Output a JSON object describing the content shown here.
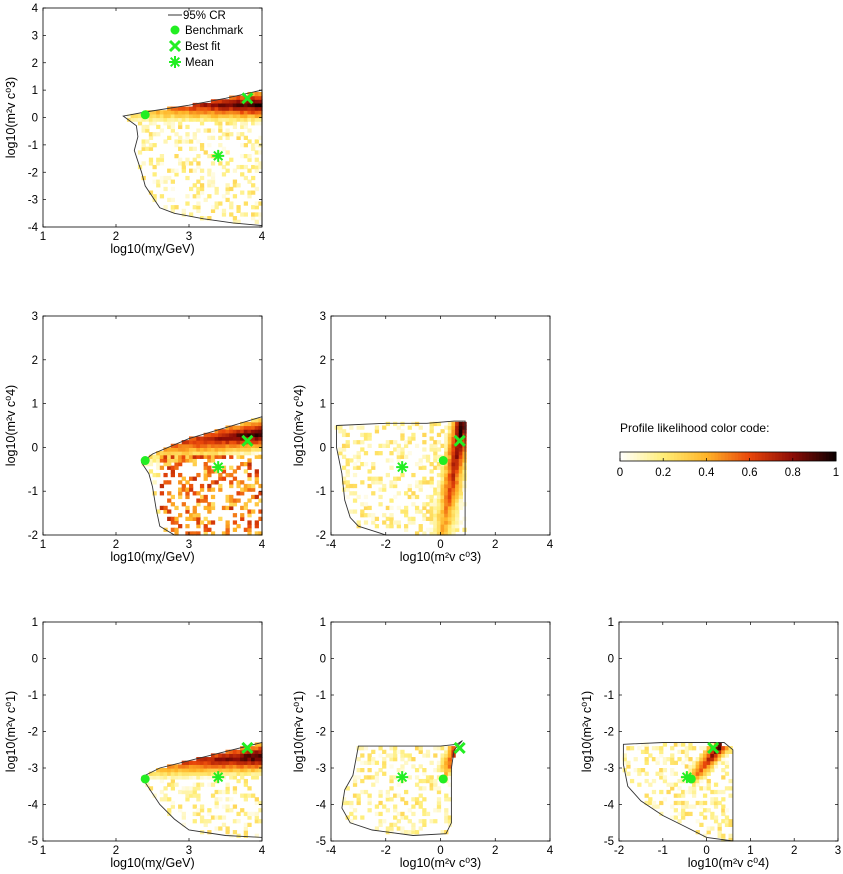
{
  "chart_data": [
    {
      "type": "heatmap",
      "panel": "m_chi-vs-c3",
      "xlabel": "log10(mχ/GeV)",
      "ylabel": "log10(m²v c⁰3)",
      "xlim": [
        1,
        4
      ],
      "ylim": [
        -4,
        4
      ],
      "xticks": [
        "1",
        "2",
        "3",
        "4"
      ],
      "yticks": [
        "-4",
        "-3",
        "-2",
        "-1",
        "0",
        "1",
        "2",
        "3",
        "4"
      ],
      "band": {
        "x": [
          2.3,
          4.0
        ],
        "y_start": [
          0.0,
          0.04
        ],
        "y_end": [
          0.82,
          0.95
        ]
      },
      "contour": [
        [
          2.1,
          0.05
        ],
        [
          2.4,
          0.2
        ],
        [
          3.0,
          0.45
        ],
        [
          3.5,
          0.7
        ],
        [
          4.0,
          1.0
        ],
        [
          4.0,
          -3.95
        ],
        [
          3.6,
          -3.85
        ],
        [
          3.2,
          -3.7
        ],
        [
          3.0,
          -3.6
        ],
        [
          2.8,
          -3.5
        ],
        [
          2.6,
          -3.3
        ],
        [
          2.5,
          -2.9
        ],
        [
          2.4,
          -2.5
        ],
        [
          2.35,
          -2.0
        ],
        [
          2.3,
          -1.6
        ],
        [
          2.25,
          -1.2
        ],
        [
          2.3,
          -0.7
        ],
        [
          2.28,
          -0.3
        ],
        [
          2.1,
          0.05
        ]
      ],
      "markers": {
        "benchmark": [
          2.4,
          0.1
        ],
        "best_fit": [
          3.8,
          0.7
        ],
        "mean": [
          3.4,
          -1.4
        ]
      },
      "legend": [
        "95% CR",
        "Benchmark",
        "Best fit",
        "Mean"
      ]
    },
    {
      "type": "heatmap",
      "panel": "m_chi-vs-c4",
      "xlabel": "log10(mχ/GeV)",
      "ylabel": "log10(m²v c⁰4)",
      "xlim": [
        1,
        4
      ],
      "ylim": [
        -2,
        3
      ],
      "xticks": [
        "1",
        "2",
        "3",
        "4"
      ],
      "yticks": [
        "-2",
        "-1",
        "0",
        "1",
        "2",
        "3"
      ],
      "band": {
        "x": [
          2.4,
          4.0
        ],
        "y_start": [
          -0.35,
          0.0
        ],
        "y_end": [
          0.4,
          0.65
        ]
      },
      "contour": [
        [
          2.35,
          -0.35
        ],
        [
          2.5,
          -0.15
        ],
        [
          3.0,
          0.2
        ],
        [
          3.5,
          0.45
        ],
        [
          4.0,
          0.7
        ],
        [
          4.0,
          -2.0
        ],
        [
          2.8,
          -2.0
        ],
        [
          2.6,
          -1.8
        ],
        [
          2.55,
          -1.4
        ],
        [
          2.5,
          -0.9
        ],
        [
          2.45,
          -0.6
        ],
        [
          2.35,
          -0.35
        ]
      ],
      "markers": {
        "benchmark": [
          2.4,
          -0.3
        ],
        "best_fit": [
          3.8,
          0.15
        ],
        "mean": [
          3.4,
          -0.45
        ]
      }
    },
    {
      "type": "heatmap",
      "panel": "c3-vs-c4",
      "xlabel": "log10(m²v c⁰3)",
      "ylabel": "log10(m²v c⁰4)",
      "xlim": [
        -4,
        4
      ],
      "ylim": [
        -2,
        3
      ],
      "xticks": [
        "-4",
        "-2",
        "0",
        "2",
        "4"
      ],
      "yticks": [
        "-2",
        "-1",
        "0",
        "1",
        "2",
        "3"
      ],
      "band": {
        "x": [
          0.1,
          0.8
        ],
        "y_start": [
          -1.9,
          0.55
        ],
        "y_end": [
          -1.9,
          0.55
        ]
      },
      "contour": [
        [
          -3.8,
          0.5
        ],
        [
          -2.0,
          0.55
        ],
        [
          -0.5,
          0.55
        ],
        [
          0.5,
          0.6
        ],
        [
          0.9,
          0.6
        ],
        [
          0.9,
          -2.0
        ],
        [
          -2.0,
          -2.0
        ],
        [
          -2.5,
          -1.9
        ],
        [
          -3.0,
          -1.8
        ],
        [
          -3.3,
          -1.6
        ],
        [
          -3.5,
          -1.2
        ],
        [
          -3.6,
          -0.6
        ],
        [
          -3.8,
          0.0
        ],
        [
          -3.8,
          0.5
        ]
      ],
      "markers": {
        "benchmark": [
          0.1,
          -0.3
        ],
        "best_fit": [
          0.7,
          0.15
        ],
        "mean": [
          -1.4,
          -0.45
        ]
      }
    },
    {
      "type": "heatmap",
      "panel": "m_chi-vs-c1",
      "xlabel": "log10(mχ/GeV)",
      "ylabel": "log10(m²v c⁰1)",
      "xlim": [
        1,
        4
      ],
      "ylim": [
        -5,
        1
      ],
      "xticks": [
        "1",
        "2",
        "3",
        "4"
      ],
      "yticks": [
        "-5",
        "-4",
        "-3",
        "-2",
        "-1",
        "0",
        "1"
      ],
      "band": {
        "x": [
          2.4,
          4.0
        ],
        "y_start": [
          -3.2,
          -3.05
        ],
        "y_end": [
          -2.6,
          -2.3
        ]
      },
      "contour": [
        [
          2.35,
          -3.25
        ],
        [
          2.6,
          -3.0
        ],
        [
          3.0,
          -2.8
        ],
        [
          3.5,
          -2.55
        ],
        [
          4.0,
          -2.3
        ],
        [
          4.0,
          -4.9
        ],
        [
          3.5,
          -4.85
        ],
        [
          3.0,
          -4.7
        ],
        [
          2.8,
          -4.4
        ],
        [
          2.6,
          -4.0
        ],
        [
          2.5,
          -3.7
        ],
        [
          2.35,
          -3.25
        ]
      ],
      "markers": {
        "benchmark": [
          2.4,
          -3.3
        ],
        "best_fit": [
          3.8,
          -2.45
        ],
        "mean": [
          3.4,
          -3.25
        ]
      }
    },
    {
      "type": "heatmap",
      "panel": "c3-vs-c1",
      "xlabel": "log10(m²v c⁰3)",
      "ylabel": "log10(m²v c⁰1)",
      "xlim": [
        -4,
        4
      ],
      "ylim": [
        -5,
        1
      ],
      "xticks": [
        "-4",
        "-2",
        "0",
        "2",
        "4"
      ],
      "yticks": [
        "-5",
        "-4",
        "-3",
        "-2",
        "-1",
        "0",
        "1"
      ],
      "band": {
        "x": [
          0.2,
          0.8
        ],
        "y_start": [
          -3.1,
          -2.3
        ],
        "y_end": [
          -3.1,
          -2.3
        ]
      },
      "contour": [
        [
          -3.0,
          -2.4
        ],
        [
          -1.5,
          -2.4
        ],
        [
          0.0,
          -2.4
        ],
        [
          0.6,
          -2.35
        ],
        [
          0.8,
          -2.25
        ],
        [
          0.5,
          -2.5
        ],
        [
          0.4,
          -3.0
        ],
        [
          0.4,
          -4.5
        ],
        [
          0.2,
          -4.8
        ],
        [
          -1.0,
          -4.85
        ],
        [
          -2.5,
          -4.7
        ],
        [
          -3.3,
          -4.5
        ],
        [
          -3.6,
          -4.1
        ],
        [
          -3.5,
          -3.6
        ],
        [
          -3.2,
          -3.2
        ],
        [
          -3.0,
          -2.4
        ]
      ],
      "markers": {
        "benchmark": [
          0.1,
          -3.3
        ],
        "best_fit": [
          0.7,
          -2.45
        ],
        "mean": [
          -1.4,
          -3.25
        ]
      }
    },
    {
      "type": "heatmap",
      "panel": "c4-vs-c1",
      "xlabel": "log10(m²v c⁰4)",
      "ylabel": "log10(m²v c⁰1)",
      "xlim": [
        -2,
        3
      ],
      "ylim": [
        -5,
        1
      ],
      "xticks": [
        "-2",
        "-1",
        "0",
        "1",
        "2",
        "3"
      ],
      "yticks": [
        "-5",
        "-4",
        "-3",
        "-2",
        "-1",
        "0",
        "1"
      ],
      "band": {
        "x": [
          -0.3,
          0.3
        ],
        "y_start": [
          -3.3,
          -2.4
        ],
        "y_end": [
          -3.3,
          -2.4
        ]
      },
      "contour": [
        [
          -1.9,
          -2.35
        ],
        [
          -1.0,
          -2.3
        ],
        [
          0.0,
          -2.3
        ],
        [
          0.4,
          -2.3
        ],
        [
          0.6,
          -2.5
        ],
        [
          0.6,
          -5.0
        ],
        [
          0.0,
          -4.9
        ],
        [
          -0.5,
          -4.6
        ],
        [
          -1.0,
          -4.3
        ],
        [
          -1.5,
          -3.9
        ],
        [
          -1.8,
          -3.5
        ],
        [
          -1.9,
          -2.9
        ],
        [
          -1.9,
          -2.35
        ]
      ],
      "markers": {
        "benchmark": [
          -0.35,
          -3.3
        ],
        "best_fit": [
          0.15,
          -2.45
        ],
        "mean": [
          -0.45,
          -3.25
        ]
      }
    }
  ],
  "colorbar": {
    "title": "Profile likelihood color code:",
    "ticks": [
      "0",
      "0.2",
      "0.4",
      "0.6",
      "0.8",
      "1"
    ],
    "range": [
      0,
      1
    ]
  },
  "legend": {
    "cr_label": "95% CR",
    "benchmark_label": "Benchmark",
    "bestfit_label": "Best fit",
    "mean_label": "Mean"
  },
  "colors": {
    "marker_green": "#22ee22",
    "contour": "#333333"
  }
}
